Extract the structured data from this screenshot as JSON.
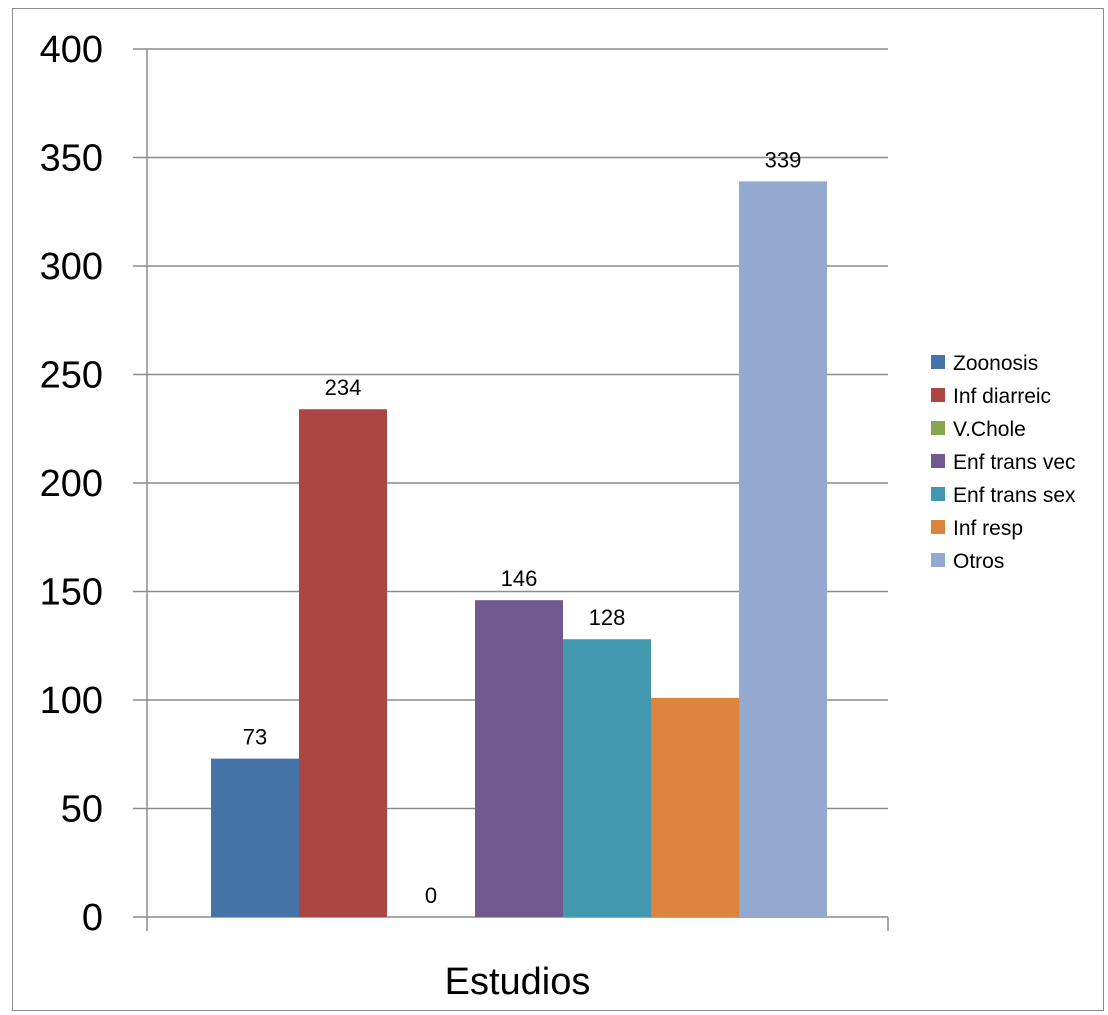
{
  "chart_data": {
    "type": "bar",
    "title": "",
    "xlabel": "",
    "ylabel": "",
    "categories": [
      "Estudios"
    ],
    "ylim": [
      0,
      400
    ],
    "y_ticks": [
      "0",
      "50",
      "100",
      "150",
      "200",
      "250",
      "300",
      "350",
      "400"
    ],
    "grid": true,
    "legend_position": "right",
    "series": [
      {
        "name": "Zoonosis",
        "values": [
          73
        ],
        "color": "#4572A7",
        "data_label": "73"
      },
      {
        "name": "Inf diarreic",
        "values": [
          234
        ],
        "color": "#AA4643",
        "data_label": "234"
      },
      {
        "name": "V.Chole",
        "values": [
          0
        ],
        "color": "#89A54E",
        "data_label": "0"
      },
      {
        "name": "Enf trans vec",
        "values": [
          146
        ],
        "color": "#71588F",
        "data_label": "146"
      },
      {
        "name": "Enf trans sex",
        "values": [
          128
        ],
        "color": "#4198AF",
        "data_label": "128"
      },
      {
        "name": "Inf resp",
        "values": [
          101
        ],
        "color": "#DB843D",
        "data_label": ""
      },
      {
        "name": "Otros",
        "values": [
          339
        ],
        "color": "#93A9CF",
        "data_label": "339"
      }
    ]
  }
}
